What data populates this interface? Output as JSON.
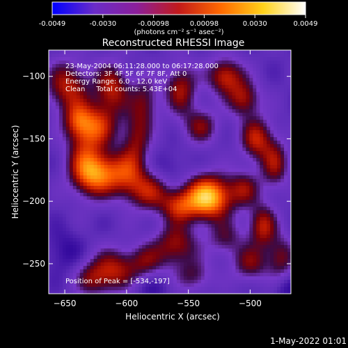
{
  "colorbar": {
    "ticks": [
      "-0.0049",
      "-0.0030",
      "-0.00098",
      "0.00098",
      "0.0030",
      "0.0049"
    ],
    "unit_label": "(photons cm⁻² s⁻¹ asec⁻²)",
    "colors": [
      "#0000ff",
      "#6a2cc8",
      "#8b1f9a",
      "#c21a1a",
      "#ff6a00",
      "#ffd21a",
      "#ffffff"
    ]
  },
  "chart_data": {
    "type": "heatmap",
    "title": "Reconstructed RHESSI Image",
    "xlabel": "Heliocentric X (arcsec)",
    "ylabel": "Heliocentric Y (arcsec)",
    "xlim": [
      -663,
      -467
    ],
    "ylim": [
      -274,
      -79
    ],
    "x_ticks": [
      -650,
      -600,
      -550,
      -500
    ],
    "y_ticks": [
      -100,
      -150,
      -200,
      -250
    ],
    "x_tick_labels": [
      "−650",
      "−600",
      "−550",
      "−500"
    ],
    "y_tick_labels": [
      "−100",
      "−150",
      "−200",
      "−250"
    ],
    "clim": [
      -0.0049,
      0.0049
    ],
    "peak": [
      -534,
      -197
    ],
    "annotations": [
      "23-May-2004 06:11:28.000 to 06:17:28.000",
      "Detectors: 3F 4F 5F 6F 7F 8F, Att 0",
      "Energy Range: 6.0 - 12.0 keV",
      "Clean     Total counts: 5.43E+04",
      "Position of Peak = [-534,-197]"
    ]
  },
  "footer": {
    "timestamp": "1-May-2022 01:01"
  }
}
